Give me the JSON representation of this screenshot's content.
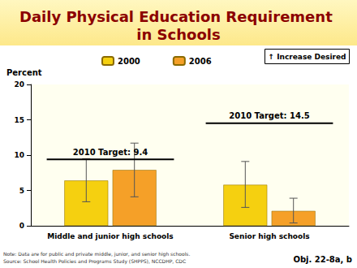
{
  "chart_data": {
    "type": "bar",
    "title": "Daily Physical Education Requirement in Schools",
    "ylabel": "Percent",
    "categories": [
      "Middle and junior high schools",
      "Senior high schools"
    ],
    "series": [
      {
        "name": "2000",
        "color": "#f5d010",
        "values": [
          6.4,
          5.8
        ],
        "errors": [
          [
            3.4,
            9.5
          ],
          [
            2.6,
            9.1
          ]
        ]
      },
      {
        "name": "2006",
        "color": "#f5a028",
        "values": [
          7.9,
          2.1
        ],
        "errors": [
          [
            4.1,
            11.7
          ],
          [
            0.4,
            3.9
          ]
        ]
      }
    ],
    "targets": [
      {
        "category": "Middle and junior high schools",
        "value": 9.4,
        "label": "2010 Target: 9.4"
      },
      {
        "category": "Senior high schools",
        "value": 14.5,
        "label": "2010 Target: 14.5"
      }
    ],
    "annotation": "↑ Increase Desired",
    "note": "Note: Data are for public and private middle, junior, and senior high schools.",
    "source": "Source: School Health Policies and Programs Study (SHPPS), NCCDHP, CDC",
    "objective": "Obj. 22-8a, b",
    "ylim": [
      0,
      20
    ],
    "yticks": [
      0,
      5,
      10,
      15,
      20
    ],
    "grid": false,
    "legend": "top"
  }
}
